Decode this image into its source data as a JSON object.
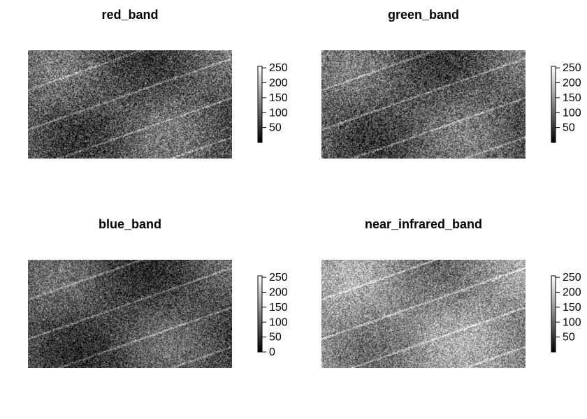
{
  "chart_data": [
    {
      "type": "heatmap",
      "title": "red_band",
      "legend": {
        "placement": "right",
        "ticks": [
          50,
          100,
          150,
          200,
          250
        ],
        "range": [
          0,
          255
        ],
        "colors": [
          "#000000",
          "#ffffff"
        ]
      },
      "texture": {
        "mean": 85,
        "spread": 80,
        "seed": 11
      }
    },
    {
      "type": "heatmap",
      "title": "green_band",
      "legend": {
        "placement": "right",
        "ticks": [
          50,
          100,
          150,
          200,
          250
        ],
        "range": [
          0,
          255
        ],
        "colors": [
          "#000000",
          "#ffffff"
        ]
      },
      "texture": {
        "mean": 90,
        "spread": 78,
        "seed": 23
      }
    },
    {
      "type": "heatmap",
      "title": "blue_band",
      "legend": {
        "placement": "right",
        "ticks": [
          0,
          50,
          100,
          150,
          200,
          250
        ],
        "range": [
          0,
          255
        ],
        "colors": [
          "#000000",
          "#ffffff"
        ]
      },
      "texture": {
        "mean": 75,
        "spread": 70,
        "seed": 37
      }
    },
    {
      "type": "heatmap",
      "title": "near_infrared_band",
      "legend": {
        "placement": "right",
        "ticks": [
          50,
          100,
          150,
          200,
          250
        ],
        "range": [
          0,
          255
        ],
        "colors": [
          "#000000",
          "#ffffff"
        ]
      },
      "texture": {
        "mean": 140,
        "spread": 75,
        "seed": 53
      }
    }
  ]
}
